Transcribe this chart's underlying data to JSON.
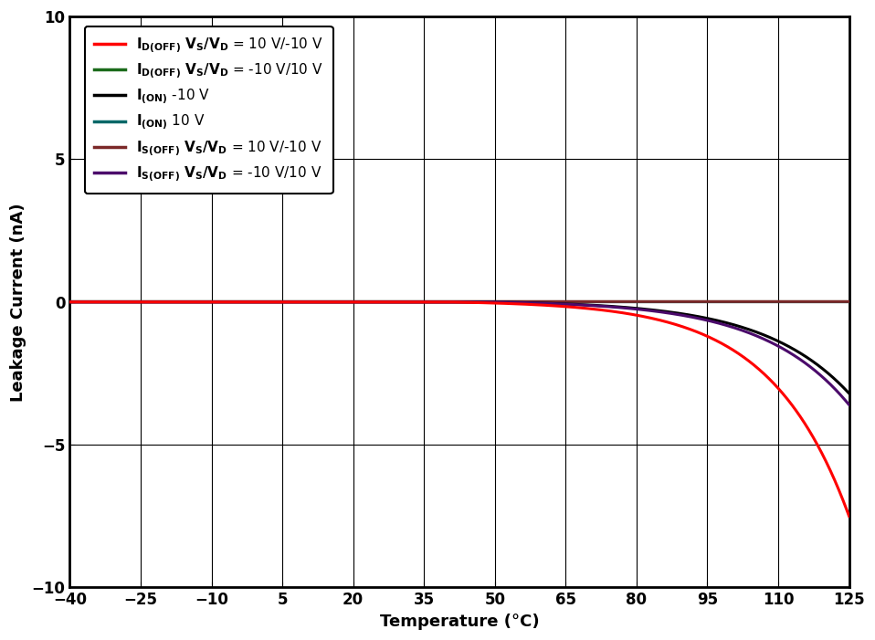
{
  "xlabel": "Temperature (°C)",
  "ylabel": "Leakage Current (nA)",
  "xlim": [
    -40,
    125
  ],
  "ylim": [
    -10,
    10
  ],
  "xticks": [
    -40,
    -25,
    -10,
    5,
    20,
    35,
    50,
    65,
    80,
    95,
    110,
    125
  ],
  "yticks": [
    -10,
    -5,
    0,
    5,
    10
  ],
  "background_color": "#FFFFFF",
  "grid_color": "#000000",
  "spine_color": "#000000",
  "tick_color": "#000000",
  "label_color": "#000000",
  "line_colors": [
    "#FF0000",
    "#1B6B1B",
    "#000000",
    "#006868",
    "#7B2828",
    "#4B0B6B"
  ],
  "line_width": 2.2,
  "legend_fontsize": 11,
  "axis_fontsize": 13,
  "tick_fontsize": 12
}
